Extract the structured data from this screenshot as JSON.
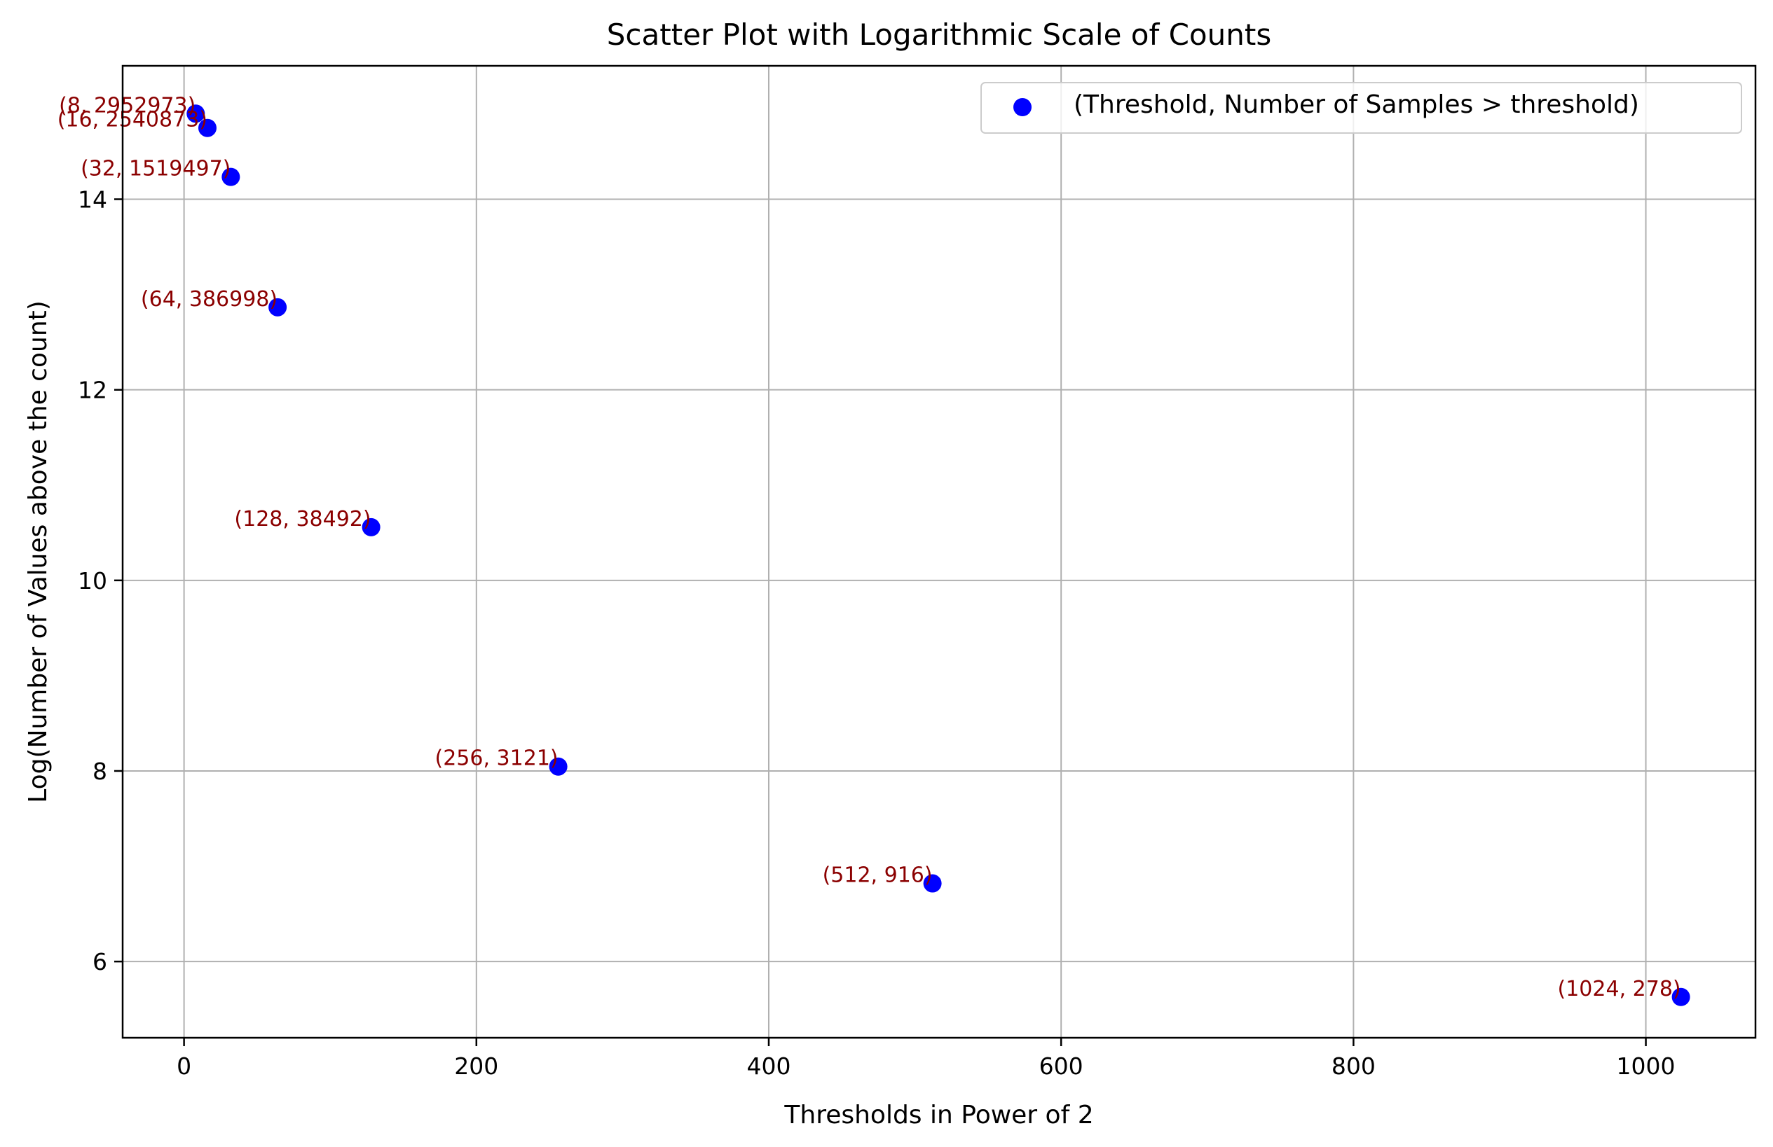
{
  "chart_data": {
    "type": "scatter",
    "title": "Scatter Plot with Logarithmic Scale of Counts",
    "xlabel": "Thresholds in Power of 2",
    "ylabel": "Log(Number of Values above the count)",
    "xlim": [
      -42,
      1075
    ],
    "ylim": [
      5.2,
      15.4
    ],
    "xticks": [
      0,
      200,
      400,
      600,
      800,
      1000
    ],
    "xtick_labels": [
      "0",
      "200",
      "400",
      "600",
      "800",
      "1000"
    ],
    "yticks": [
      6,
      8,
      10,
      12,
      14
    ],
    "ytick_labels": [
      "6",
      "8",
      "10",
      "12",
      "14"
    ],
    "grid": true,
    "legend": {
      "position": "top-right"
    },
    "series": [
      {
        "name": "(Threshold, Number of Samples > threshold)",
        "color": "#0000ff",
        "x": [
          8,
          16,
          32,
          64,
          128,
          256,
          512,
          1024
        ],
        "y": [
          14.898,
          14.748,
          14.234,
          12.866,
          10.558,
          8.046,
          6.82,
          5.628
        ],
        "labels": [
          "(8, 2952973)",
          "(16, 2540873)",
          "(32, 1519497)",
          "(64, 386998)",
          "(128, 38492)",
          "(256, 3121)",
          "(512, 916)",
          "(1024, 278)"
        ]
      }
    ],
    "label_color": "#8b0000"
  }
}
